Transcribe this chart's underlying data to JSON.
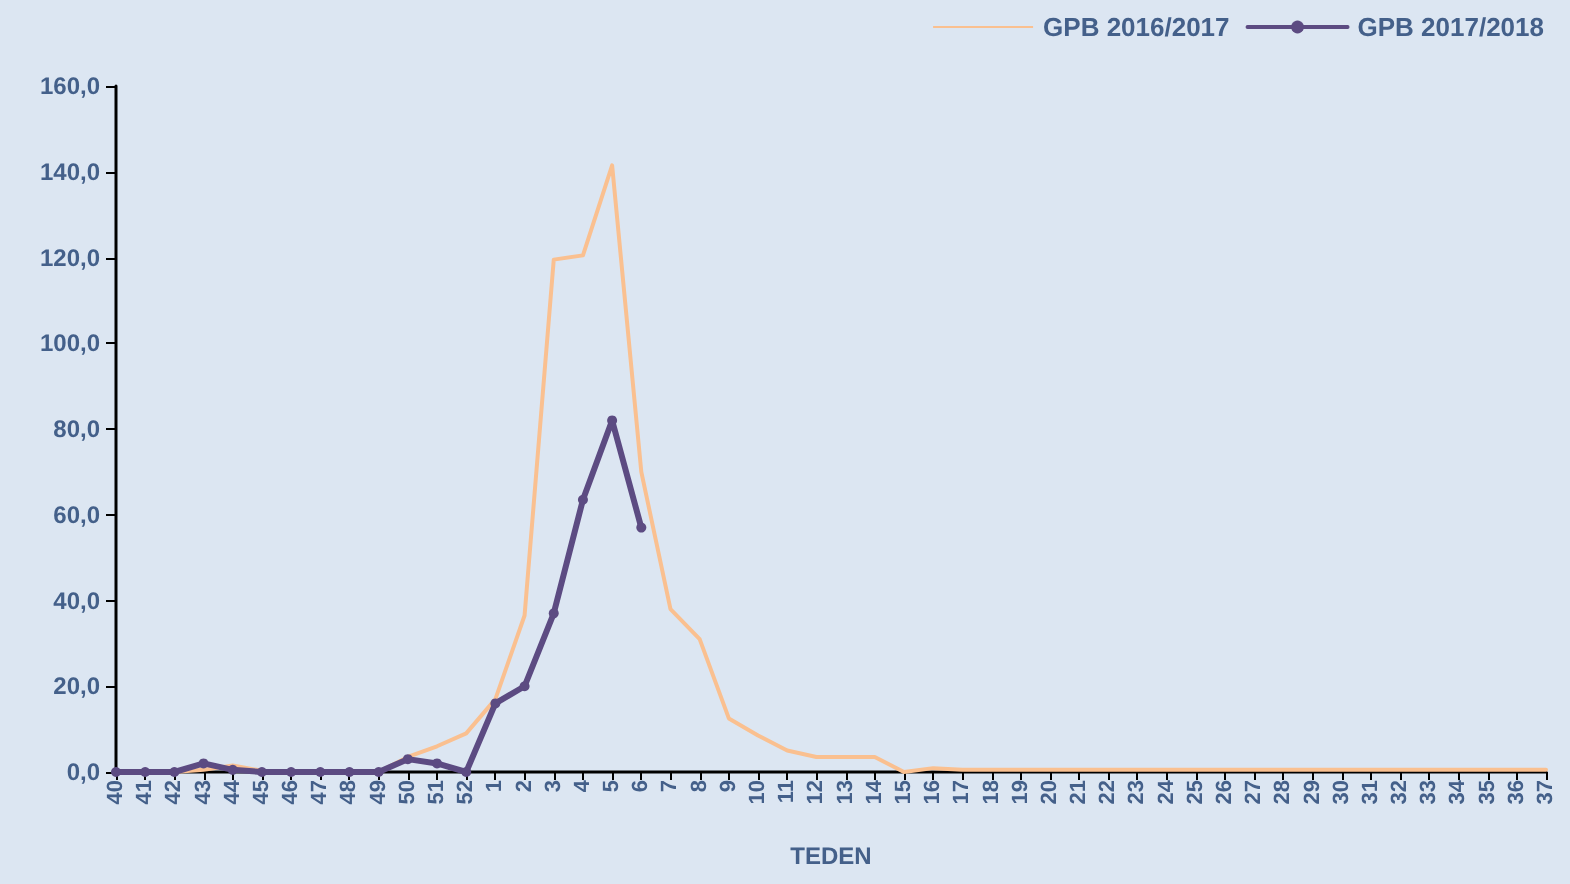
{
  "chart_data": {
    "type": "line",
    "xlabel": "TEDEN",
    "categories": [
      "40",
      "41",
      "42",
      "43",
      "44",
      "45",
      "46",
      "47",
      "48",
      "49",
      "50",
      "51",
      "52",
      "1",
      "2",
      "3",
      "4",
      "5",
      "6",
      "7",
      "8",
      "9",
      "10",
      "11",
      "12",
      "13",
      "14",
      "15",
      "16",
      "17",
      "18",
      "19",
      "20",
      "21",
      "22",
      "23",
      "24",
      "25",
      "26",
      "27",
      "28",
      "29",
      "30",
      "31",
      "32",
      "33",
      "34",
      "35",
      "36",
      "37"
    ],
    "series": [
      {
        "name": "GPB 2016/2017",
        "color": "#fac090",
        "marker": "none",
        "values": [
          0,
          0,
          0,
          0.5,
          1.5,
          0.3,
          0,
          0,
          0,
          0,
          3.5,
          6,
          9,
          17,
          36.5,
          119.5,
          120.5,
          141.5,
          70,
          38,
          31,
          12.5,
          8.5,
          5,
          3.5,
          3.5,
          3.5,
          0,
          0.9,
          0.5,
          0.5,
          0.5,
          0.5,
          0.5,
          0.5,
          0.5,
          0.5,
          0.5,
          0.5,
          0.5,
          0.5,
          0.5,
          0.5,
          0.5,
          0.5,
          0.5,
          0.5,
          0.5,
          0.5,
          0.5
        ]
      },
      {
        "name": "GPB 2017/2018",
        "color": "#5c4b82",
        "marker": "circle",
        "values": [
          0,
          0,
          0,
          2,
          0.5,
          0,
          0,
          0,
          0,
          0,
          3,
          2,
          0,
          16,
          20,
          37,
          63.5,
          82,
          57,
          null,
          null,
          null,
          null,
          null,
          null,
          null,
          null,
          null,
          null,
          null,
          null,
          null,
          null,
          null,
          null,
          null,
          null,
          null,
          null,
          null,
          null,
          null,
          null,
          null,
          null,
          null,
          null,
          null,
          null,
          null
        ]
      }
    ],
    "ylim": [
      0,
      160
    ],
    "yticks": [
      {
        "value": 0,
        "label": "0,0"
      },
      {
        "value": 20,
        "label": "20,0"
      },
      {
        "value": 40,
        "label": "40,0"
      },
      {
        "value": 60,
        "label": "60,0"
      },
      {
        "value": 80,
        "label": "80,0"
      },
      {
        "value": 100,
        "label": "100,0"
      },
      {
        "value": 120,
        "label": "120,0"
      },
      {
        "value": 140,
        "label": "140,0"
      },
      {
        "value": 160,
        "label": "160,0"
      }
    ],
    "grid": false,
    "legend": "top right"
  }
}
